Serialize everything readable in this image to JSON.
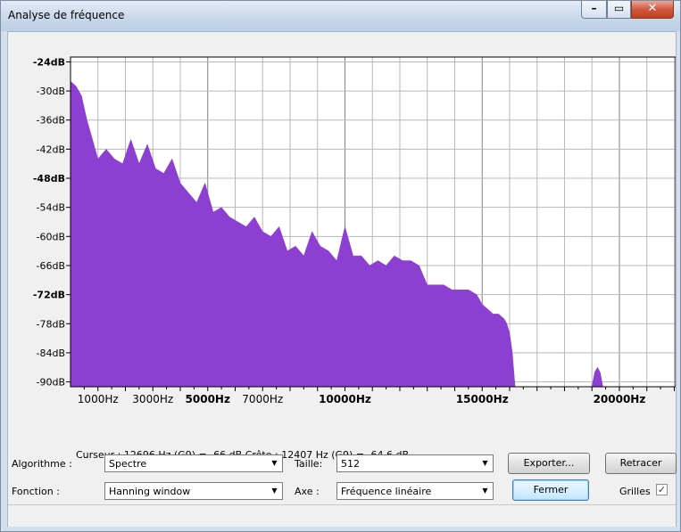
{
  "window": {
    "title": "Analyse de fréquence",
    "min_glyph": "–",
    "max_glyph": "▭",
    "close_glyph": "✕"
  },
  "chart_data": {
    "type": "area",
    "ylabels": [
      "-24dB",
      "-30dB",
      "-36dB",
      "-42dB",
      "-48dB",
      "-54dB",
      "-60dB",
      "-66dB",
      "-72dB",
      "-78dB",
      "-84dB",
      "-90dB"
    ],
    "ylabels_bold": [
      "-24dB",
      "-48dB",
      "-72dB"
    ],
    "xlabels": [
      {
        "label": "1000Hz",
        "hz": 1000,
        "bold": false
      },
      {
        "label": "3000Hz",
        "hz": 3000,
        "bold": false
      },
      {
        "label": "5000Hz",
        "hz": 5000,
        "bold": true
      },
      {
        "label": "7000Hz",
        "hz": 7000,
        "bold": false
      },
      {
        "label": "10000Hz",
        "hz": 10000,
        "bold": true
      },
      {
        "label": "15000Hz",
        "hz": 15000,
        "bold": true
      },
      {
        "label": "20000Hz",
        "hz": 20000,
        "bold": true
      }
    ],
    "xlim": [
      0,
      22050
    ],
    "ylim": [
      -91,
      -23
    ],
    "fill_color": "#8c3fd0",
    "grid": true,
    "series": [
      {
        "x": [
          0,
          200,
          400,
          600,
          800,
          1000,
          1300,
          1600,
          1900,
          2200,
          2500,
          2800,
          3100,
          3400,
          3700,
          4000,
          4300,
          4600,
          4900,
          5200,
          5500,
          5800,
          6100,
          6400,
          6700,
          7000,
          7300,
          7600,
          7900,
          8200,
          8500,
          8800,
          9100,
          9400,
          9700,
          10000,
          10300,
          10600,
          10900,
          11200,
          11500,
          11800,
          12100,
          12400,
          12700,
          13000,
          13300,
          13600,
          13900,
          14200,
          14500,
          14800,
          15000,
          15200,
          15400,
          15600,
          15800,
          15900,
          16000,
          16100,
          16200,
          16300,
          16500,
          19000,
          19100,
          19200,
          19300,
          19400,
          19500,
          19600,
          22050
        ],
        "y": [
          -28,
          -29,
          -31,
          -36,
          -40,
          -44,
          -42,
          -44,
          -45,
          -40,
          -45,
          -41,
          -46,
          -47,
          -44,
          -49,
          -51,
          -53,
          -49,
          -55,
          -54,
          -56,
          -57,
          -58,
          -56,
          -59,
          -60,
          -58,
          -63,
          -62,
          -64,
          -59,
          -62,
          -63,
          -65,
          -58,
          -64,
          -64,
          -66,
          -65,
          -66,
          -64,
          -65,
          -65,
          -66,
          -70,
          -70,
          -70,
          -71,
          -71,
          -71,
          -72,
          -74,
          -75,
          -76,
          -76,
          -77,
          -78,
          -80,
          -84,
          -91,
          -91,
          -91,
          -91,
          -88,
          -87,
          -88,
          -91,
          -91,
          -91,
          -91
        ]
      }
    ]
  },
  "status": {
    "cursor_text": "Curseur : 12696 Hz (G9) = -66 dB   Crête : 12407 Hz (G9) = -64,6 dB"
  },
  "controls": {
    "algo_label": "Algorithme :",
    "algo_value": "Spectre",
    "taille_label": "Taille:",
    "taille_value": "512",
    "export_label": "Exporter...",
    "retracer_label": "Retracer",
    "fonction_label": "Fonction :",
    "fonction_value": "Hanning window",
    "axe_label": "Axe :",
    "axe_value": "Fréquence linéaire",
    "fermer_label": "Fermer",
    "grilles_label": "Grilles",
    "grilles_checked": true
  }
}
